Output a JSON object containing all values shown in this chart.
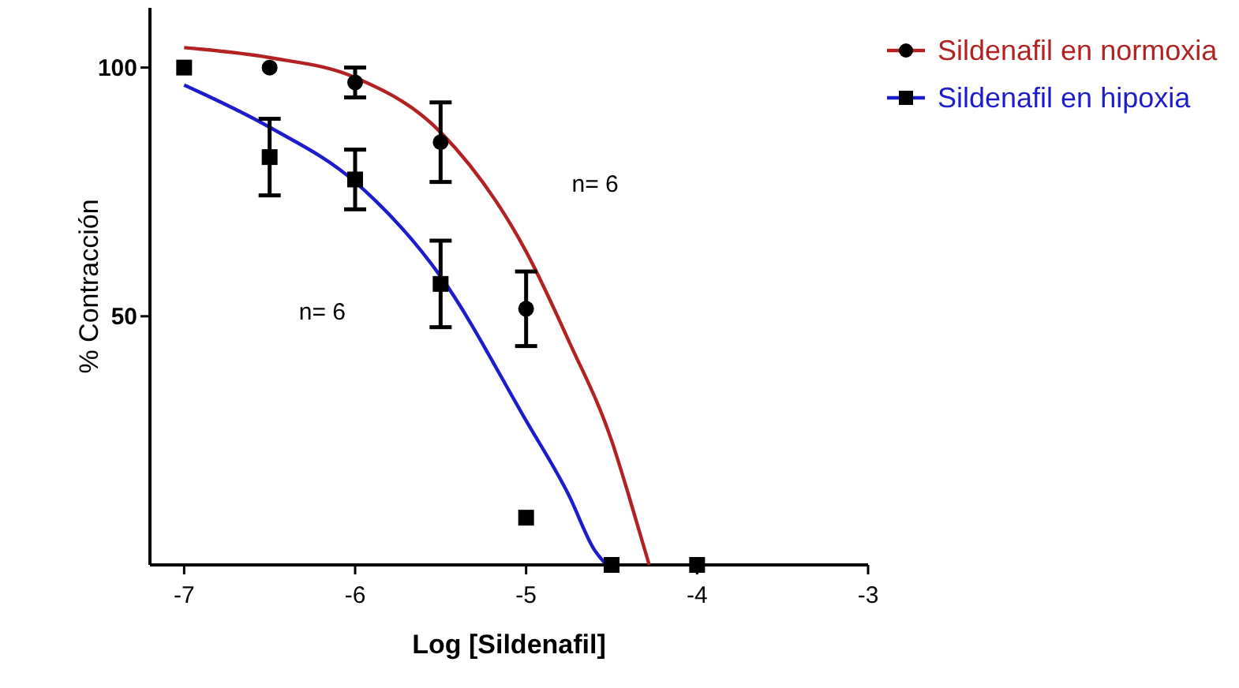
{
  "chart_data": {
    "type": "scatter",
    "xlabel": "Log [Sildenafil]",
    "ylabel": "% Contracción",
    "xlim": [
      -7.2,
      -3
    ],
    "xticks": [
      -7,
      -6,
      -5,
      -4,
      -3
    ],
    "ylim": [
      0,
      112
    ],
    "yticks": [
      50,
      100
    ],
    "grid": false,
    "legend": "top right",
    "annotations": [
      "n= 6",
      "n= 6"
    ],
    "series": [
      {
        "type": "line",
        "name": "Sildenafil en normoxia",
        "color": "#b22222",
        "x": [
          -7,
          -6.5,
          -6,
          -5.5,
          -5,
          -4.75,
          -4.5,
          -4.4,
          -4.28
        ],
        "values": [
          104,
          102,
          98,
          87,
          63,
          45,
          25,
          14,
          0
        ]
      },
      {
        "type": "line",
        "name": "Sildenafil en hipoxia",
        "color": "#1c1ccc",
        "x": [
          -7,
          -6.5,
          -6,
          -5.5,
          -5,
          -4.75,
          -4.6,
          -4.53
        ],
        "values": [
          96.5,
          88,
          77,
          58,
          29,
          14,
          3,
          0
        ]
      },
      {
        "color": "#000000",
        "marker": "circle",
        "x": [
          -6.5,
          -6,
          -5.5,
          -5
        ],
        "values": [
          100,
          97,
          85,
          51.5
        ],
        "errors": [
          null,
          3,
          8,
          7.5
        ]
      },
      {
        "color": "#000000",
        "marker": "square",
        "x": [
          -7,
          -6.5,
          -6,
          -5.5,
          -5,
          -4.5,
          -4
        ],
        "values": [
          100,
          82,
          77.5,
          56.5,
          9.5,
          0,
          0
        ],
        "errors": [
          null,
          7.7,
          6,
          8.7,
          null,
          null,
          null
        ]
      }
    ]
  }
}
